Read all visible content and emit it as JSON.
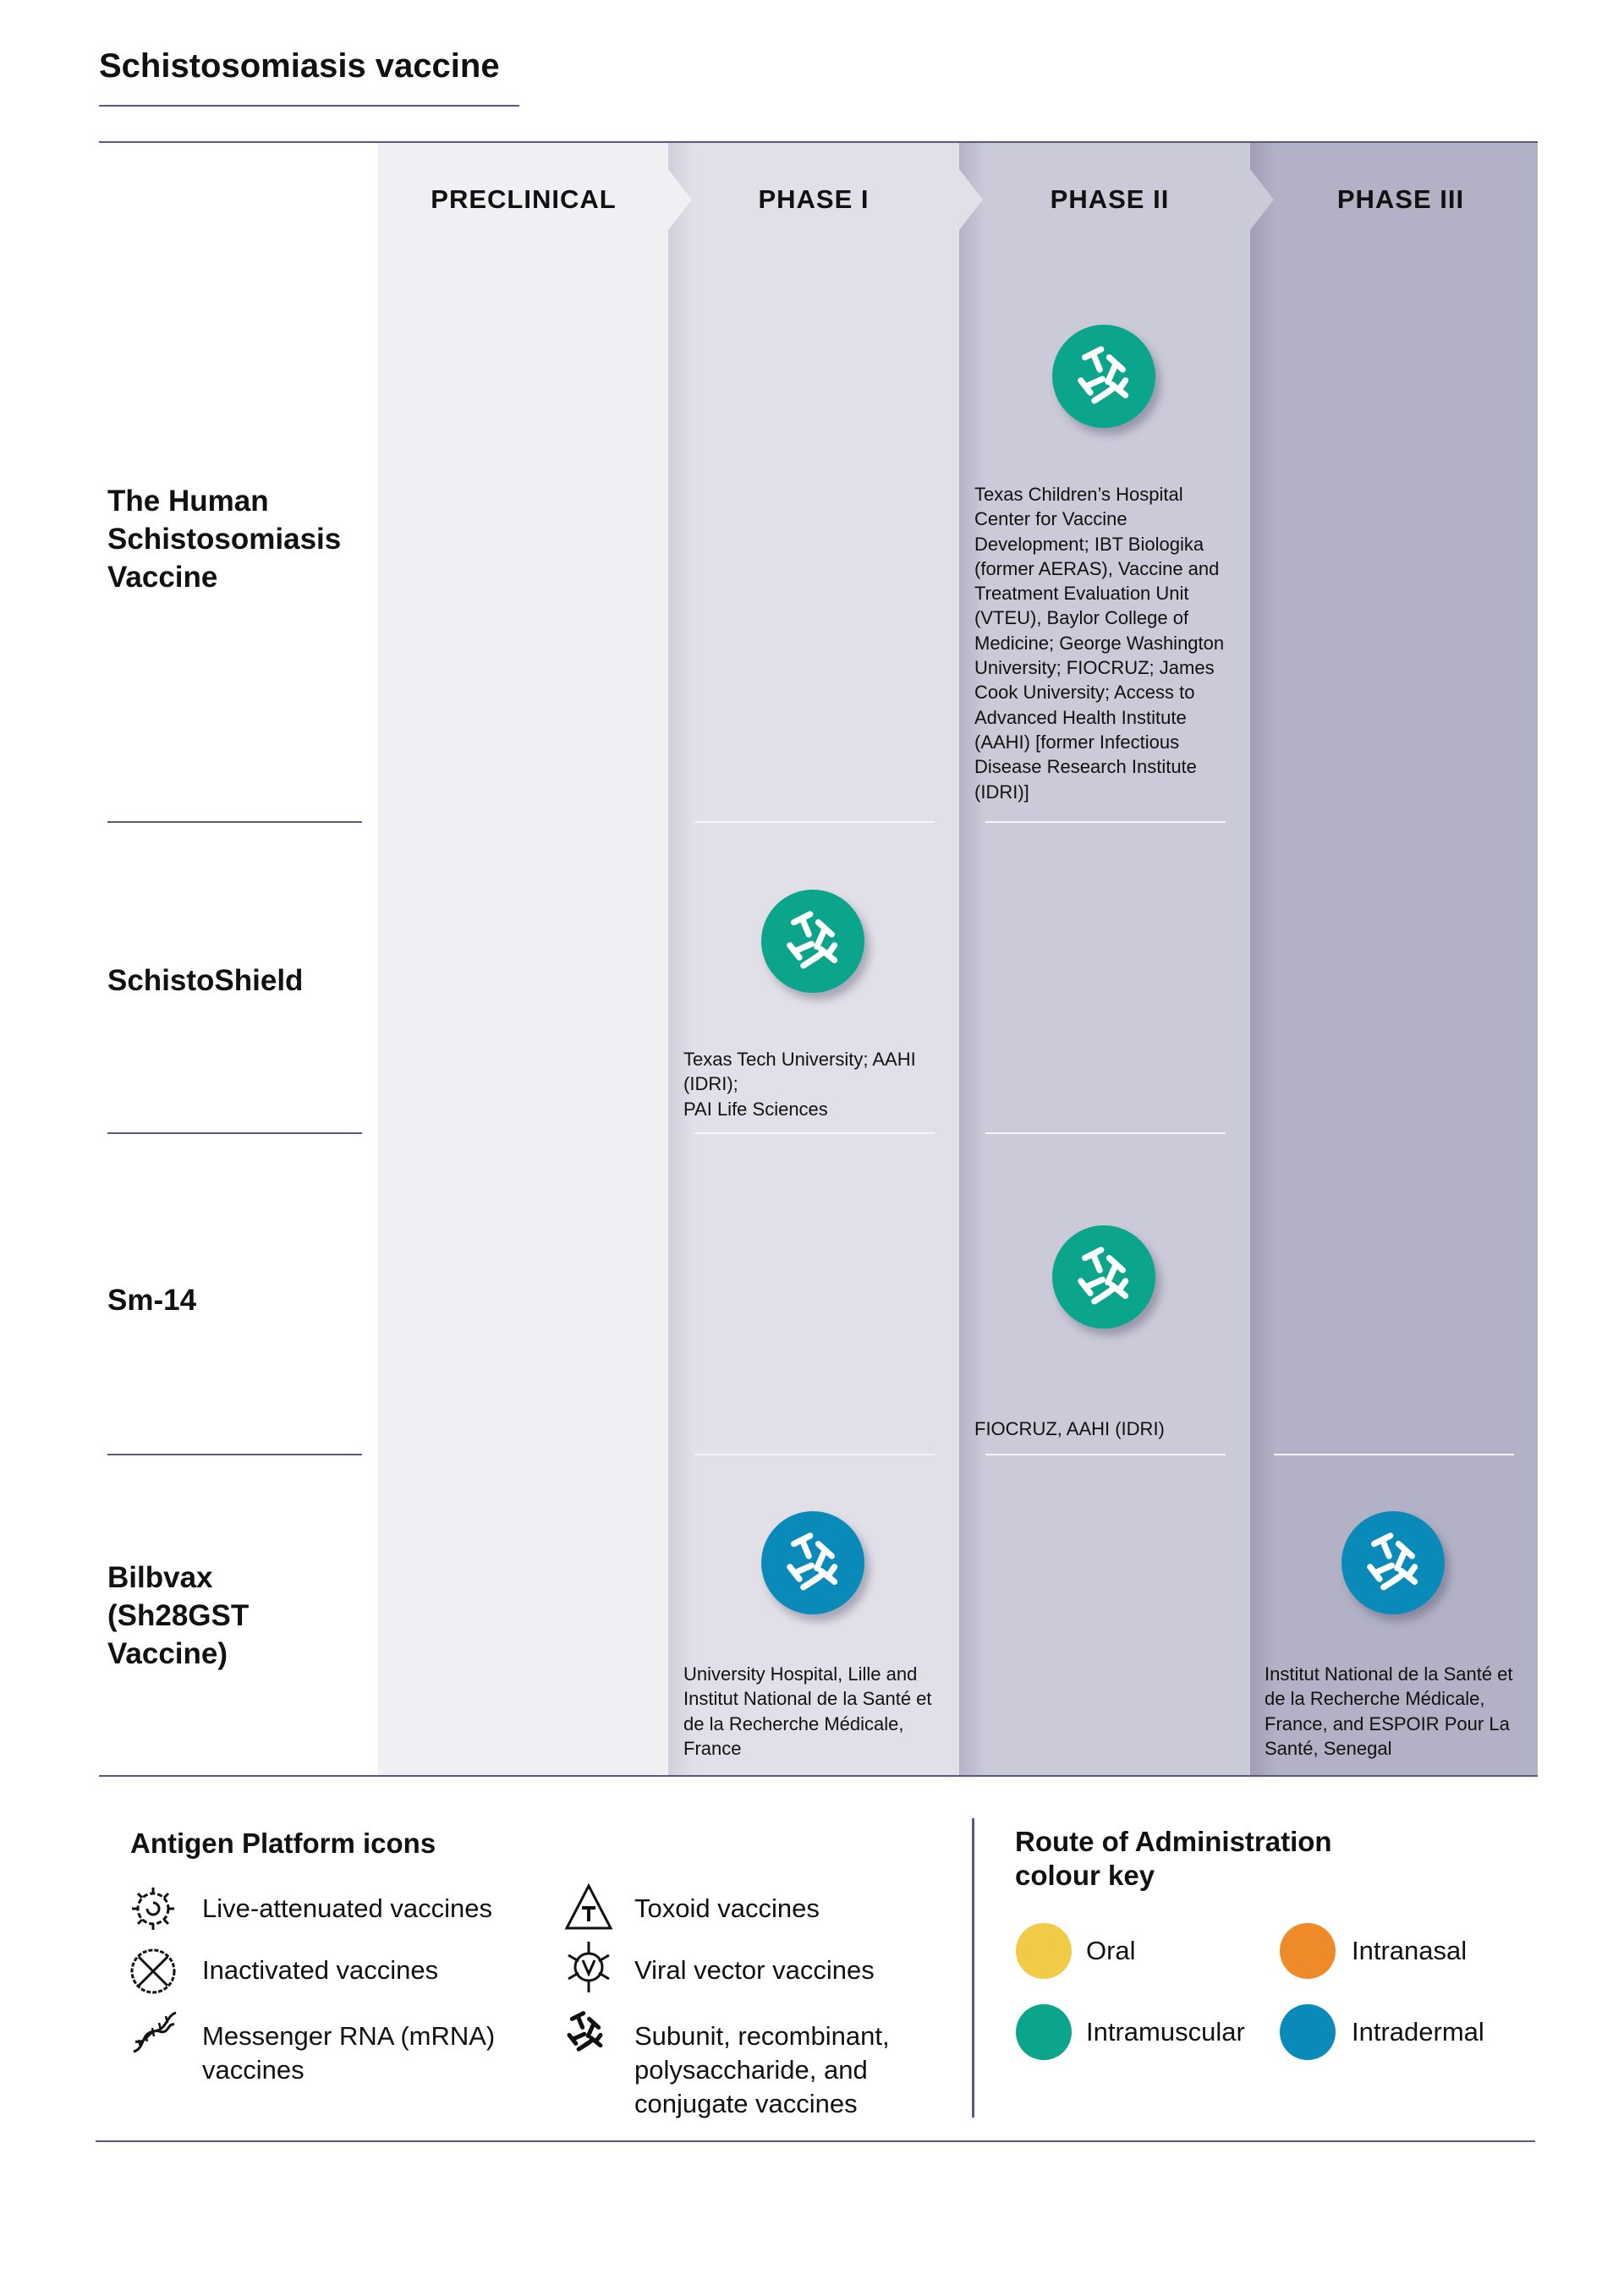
{
  "title": "Schistosomiasis vaccine",
  "phases": [
    "PRECLINICAL",
    "PHASE I",
    "PHASE II",
    "PHASE III"
  ],
  "colors": {
    "intramuscular": "#0aa58a",
    "intradermal": "#0a8ab8",
    "oral": "#f0cb46",
    "intranasal": "#ee8a2a"
  },
  "rows": [
    {
      "name": "The Human Schistosomiasis Vaccine",
      "entries": [
        {
          "phase": "PHASE II",
          "icon": "subunit-icon",
          "route": "Intramuscular",
          "org": "Texas Children’s Hospital Center for Vaccine Development; IBT Biologika (former AERAS), Vaccine and Treatment Evaluation Unit (VTEU), Baylor College of Medicine; George Washington University; FIOCRUZ; James Cook University; Access to Advanced Health Institute (AAHI) [former Infectious Disease Research Institute (IDRI)]"
        }
      ]
    },
    {
      "name": "SchistoShield",
      "entries": [
        {
          "phase": "PHASE I",
          "icon": "subunit-icon",
          "route": "Intramuscular",
          "org": "Texas Tech University; AAHI (IDRI);\nPAI Life Sciences"
        }
      ]
    },
    {
      "name": "Sm-14",
      "entries": [
        {
          "phase": "PHASE II",
          "icon": "subunit-icon",
          "route": "Intramuscular",
          "org": "FIOCRUZ,  AAHI (IDRI)"
        }
      ]
    },
    {
      "name": "Bilbvax (Sh28GST Vaccine)",
      "entries": [
        {
          "phase": "PHASE I",
          "icon": "subunit-icon",
          "route": "Intradermal",
          "org": "University Hospital, Lille and Institut National de la Santé et de la Recherche Médicale, France"
        },
        {
          "phase": "PHASE III",
          "icon": "subunit-icon",
          "route": "Intradermal",
          "org": "Institut National de la Santé et de la Recherche Médicale, France, and ESPOIR Pour La Santé, Senegal"
        }
      ]
    }
  ],
  "legend": {
    "platform_title": "Antigen Platform icons",
    "platform_items": [
      {
        "icon": "live-attenuated-icon",
        "label": "Live-attenuated vaccines"
      },
      {
        "icon": "inactivated-icon",
        "label": "Inactivated vaccines"
      },
      {
        "icon": "mrna-icon",
        "label": "Messenger RNA (mRNA) vaccines"
      },
      {
        "icon": "toxoid-icon",
        "label": "Toxoid vaccines"
      },
      {
        "icon": "viral-vector-icon",
        "label": "Viral vector vaccines"
      },
      {
        "icon": "subunit-icon",
        "label": "Subunit, recombinant, polysaccharide, and conjugate vaccines"
      }
    ],
    "route_title": "Route of Administration colour key",
    "route_items": [
      {
        "label": "Oral",
        "color": "#f0cb46"
      },
      {
        "label": "Intranasal",
        "color": "#ee8a2a"
      },
      {
        "label": "Intramuscular",
        "color": "#0aa58a"
      },
      {
        "label": "Intradermal",
        "color": "#0a8ab8"
      }
    ]
  }
}
